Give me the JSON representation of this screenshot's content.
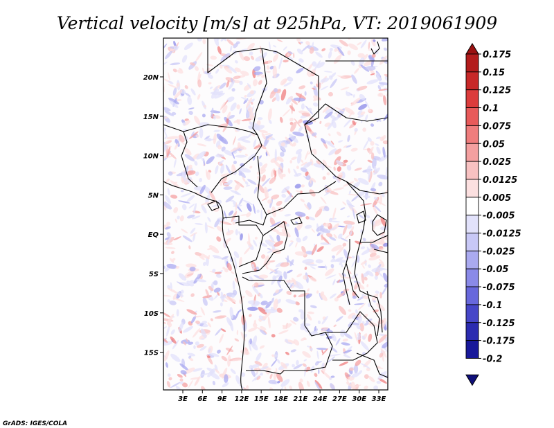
{
  "title": "Vertical velocity [m/s] at 925hPa, VT: 2019061909",
  "credit": "GrADS: IGES/COLA",
  "map": {
    "lon_ticks": [
      "3E",
      "6E",
      "9E",
      "12E",
      "15E",
      "18E",
      "21E",
      "24E",
      "27E",
      "30E",
      "33E"
    ],
    "lat_ticks": [
      "20N",
      "15N",
      "10N",
      "5N",
      "EQ",
      "5S",
      "10S",
      "15S"
    ]
  },
  "colorbar": {
    "labels": [
      "0.175",
      "0.15",
      "0.125",
      "0.1",
      "0.075",
      "0.05",
      "0.025",
      "0.0125",
      "0.005",
      "-0.005",
      "-0.0125",
      "-0.025",
      "-0.05",
      "-0.075",
      "-0.1",
      "-0.125",
      "-0.175",
      "-0.2"
    ],
    "colors": [
      "#9b1111",
      "#b31c1c",
      "#c82828",
      "#dc3c3c",
      "#e85a5a",
      "#ef7d7d",
      "#f4a0a0",
      "#f8c2c2",
      "#fce0e0",
      "#ffffff",
      "#e2e2fb",
      "#c8c8f6",
      "#aaaaf0",
      "#8a8ae8",
      "#6868dc",
      "#4646c8",
      "#2b2bb0",
      "#18189a",
      "#10107a"
    ]
  }
}
